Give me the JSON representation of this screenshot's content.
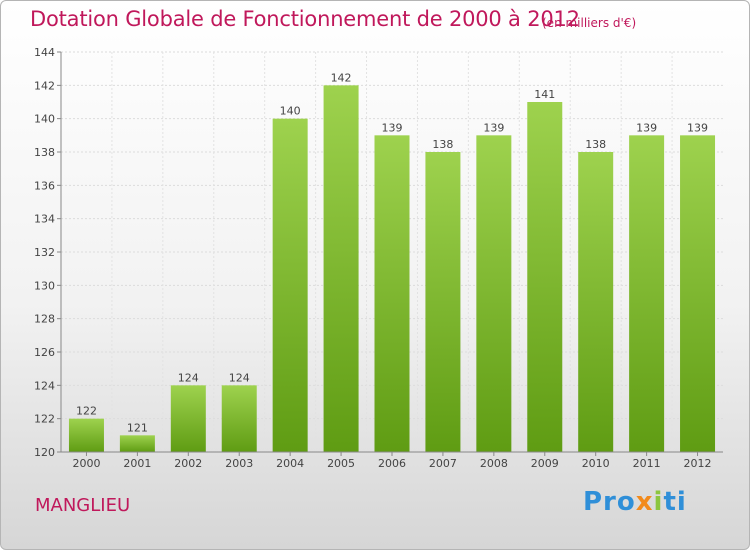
{
  "header": {
    "title": "Dotation Globale de Fonctionnement de 2000 à 2012",
    "unit": "(en milliers d'€)"
  },
  "footer": {
    "commune": "MANGLIEU",
    "brand": [
      "Pro",
      "x",
      "i",
      "ti"
    ]
  },
  "colors": {
    "accent": "#c0185b",
    "bar_light": "#9ed24e",
    "bar_dark": "#5f9c13",
    "brand_blue": "#2f8fd8",
    "brand_orange": "#f28a1b",
    "brand_green": "#8cc63f"
  },
  "chart_data": {
    "type": "bar",
    "title": "Dotation Globale de Fonctionnement de 2000 à 2012",
    "subtitle": "(en milliers d'€)",
    "xlabel": "",
    "ylabel": "",
    "categories": [
      "2000",
      "2001",
      "2002",
      "2003",
      "2004",
      "2005",
      "2006",
      "2007",
      "2008",
      "2009",
      "2010",
      "2011",
      "2012"
    ],
    "values": [
      122,
      121,
      124,
      124,
      140,
      142,
      139,
      138,
      139,
      141,
      138,
      139,
      139
    ],
    "ylim": [
      120,
      144
    ],
    "yticks": [
      120,
      122,
      124,
      126,
      128,
      130,
      132,
      134,
      136,
      138,
      140,
      142,
      144
    ],
    "grid": true,
    "legend": "none"
  }
}
